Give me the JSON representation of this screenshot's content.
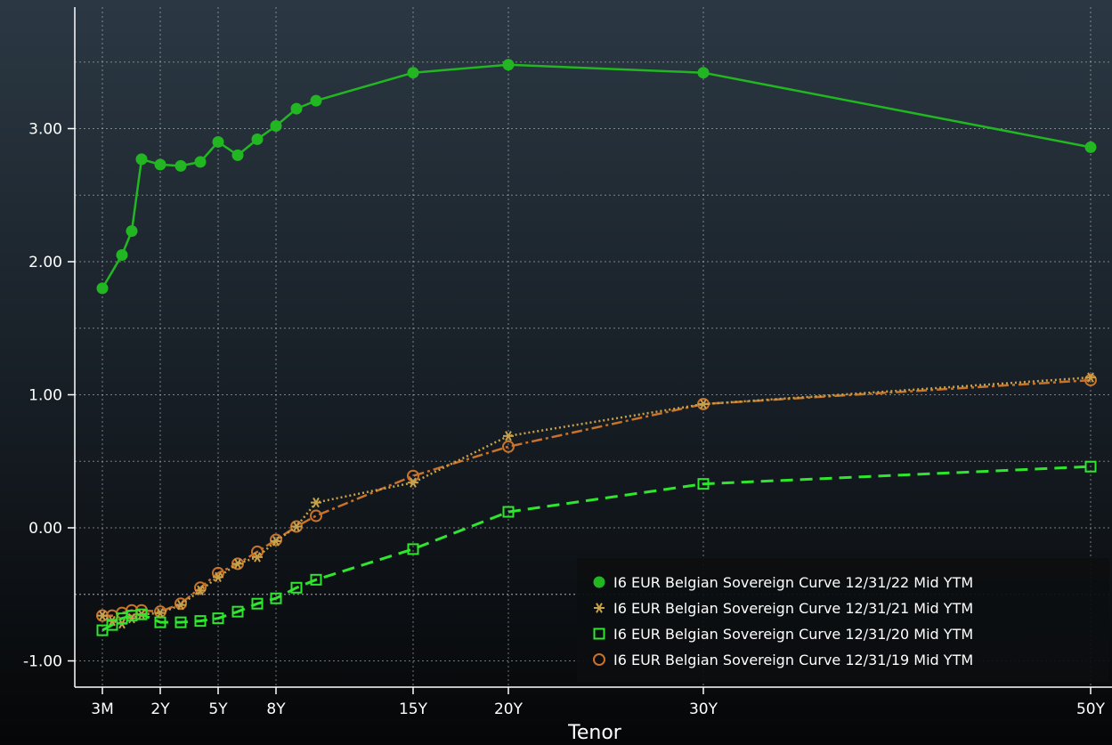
{
  "chart_data": {
    "type": "line",
    "title": "",
    "xlabel": "Tenor",
    "ylabel": "",
    "ylim": [
      -1.15,
      3.9
    ],
    "y_ticks": [
      -1.0,
      0.0,
      1.0,
      2.0,
      3.0
    ],
    "y_tick_labels": [
      "-1.00",
      "0.00",
      "1.00",
      "2.00",
      "3.00"
    ],
    "x_ticks": [
      0.25,
      2,
      5,
      8,
      15,
      20,
      30,
      50
    ],
    "x_tick_labels": [
      "3M",
      "2Y",
      "5Y",
      "8Y",
      "15Y",
      "20Y",
      "30Y",
      "50Y"
    ],
    "x_scale": "categorical tenor spacing",
    "grid": true,
    "legend_position": "bottom-right",
    "series": [
      {
        "name": "I6 EUR Belgian Sovereign Curve 12/31/22 Mid YTM",
        "color": "#22b722",
        "line_style": "solid",
        "marker": "filled-circle",
        "x": [
          0.25,
          0.75,
          1,
          1.25,
          2,
          3,
          4,
          5,
          6,
          7,
          8,
          9,
          10,
          15,
          20,
          30,
          50
        ],
        "y": [
          1.8,
          2.05,
          2.23,
          2.77,
          2.73,
          2.72,
          2.75,
          2.9,
          2.8,
          2.92,
          3.02,
          3.15,
          3.21,
          3.42,
          3.48,
          3.42,
          2.86
        ]
      },
      {
        "name": "I6 EUR Belgian Sovereign Curve 12/31/21 Mid YTM",
        "color": "#c8a24a",
        "line_style": "dotted",
        "marker": "asterisk",
        "x": [
          0.25,
          0.5,
          0.75,
          1,
          1.25,
          2,
          3,
          4,
          5,
          6,
          7,
          8,
          9,
          10,
          15,
          20,
          30,
          50
        ],
        "y": [
          -0.66,
          -0.7,
          -0.72,
          -0.68,
          -0.65,
          -0.64,
          -0.58,
          -0.47,
          -0.37,
          -0.27,
          -0.22,
          -0.1,
          0.01,
          0.19,
          0.34,
          0.69,
          0.93,
          1.13
        ]
      },
      {
        "name": "I6 EUR Belgian Sovereign Curve 12/31/20 Mid YTM",
        "color": "#2ee62e",
        "line_style": "dashed",
        "marker": "open-square",
        "x": [
          0.25,
          0.5,
          0.75,
          1,
          1.25,
          2,
          3,
          4,
          5,
          6,
          7,
          8,
          9,
          10,
          15,
          20,
          30,
          50
        ],
        "y": [
          -0.77,
          -0.73,
          -0.68,
          -0.66,
          -0.65,
          -0.71,
          -0.71,
          -0.7,
          -0.68,
          -0.63,
          -0.57,
          -0.53,
          -0.45,
          -0.39,
          -0.16,
          0.12,
          0.33,
          0.46
        ]
      },
      {
        "name": "I6 EUR Belgian Sovereign Curve 12/31/19 Mid YTM",
        "color": "#c8722a",
        "line_style": "dash-dot",
        "marker": "open-circle",
        "x": [
          0.25,
          0.5,
          0.75,
          1,
          1.25,
          2,
          3,
          4,
          5,
          6,
          7,
          8,
          9,
          10,
          15,
          20,
          30,
          50
        ],
        "y": [
          -0.66,
          -0.66,
          -0.64,
          -0.62,
          -0.62,
          -0.63,
          -0.57,
          -0.45,
          -0.34,
          -0.27,
          -0.18,
          -0.09,
          0.01,
          0.09,
          0.39,
          0.61,
          0.93,
          1.11
        ]
      }
    ]
  }
}
